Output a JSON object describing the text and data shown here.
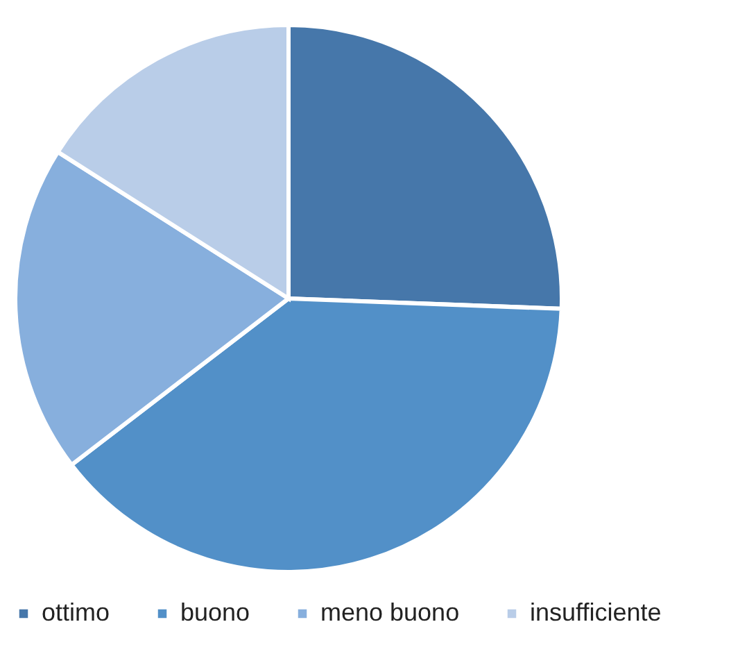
{
  "chart_data": {
    "type": "pie",
    "categories": [
      "ottimo",
      "buono",
      "meno buono",
      "insufficiente"
    ],
    "values": [
      25.6,
      39.0,
      19.4,
      16.0
    ],
    "colors": [
      "#4677aa",
      "#5290c8",
      "#87afdd",
      "#b9cde8"
    ],
    "legend": "bottom"
  }
}
